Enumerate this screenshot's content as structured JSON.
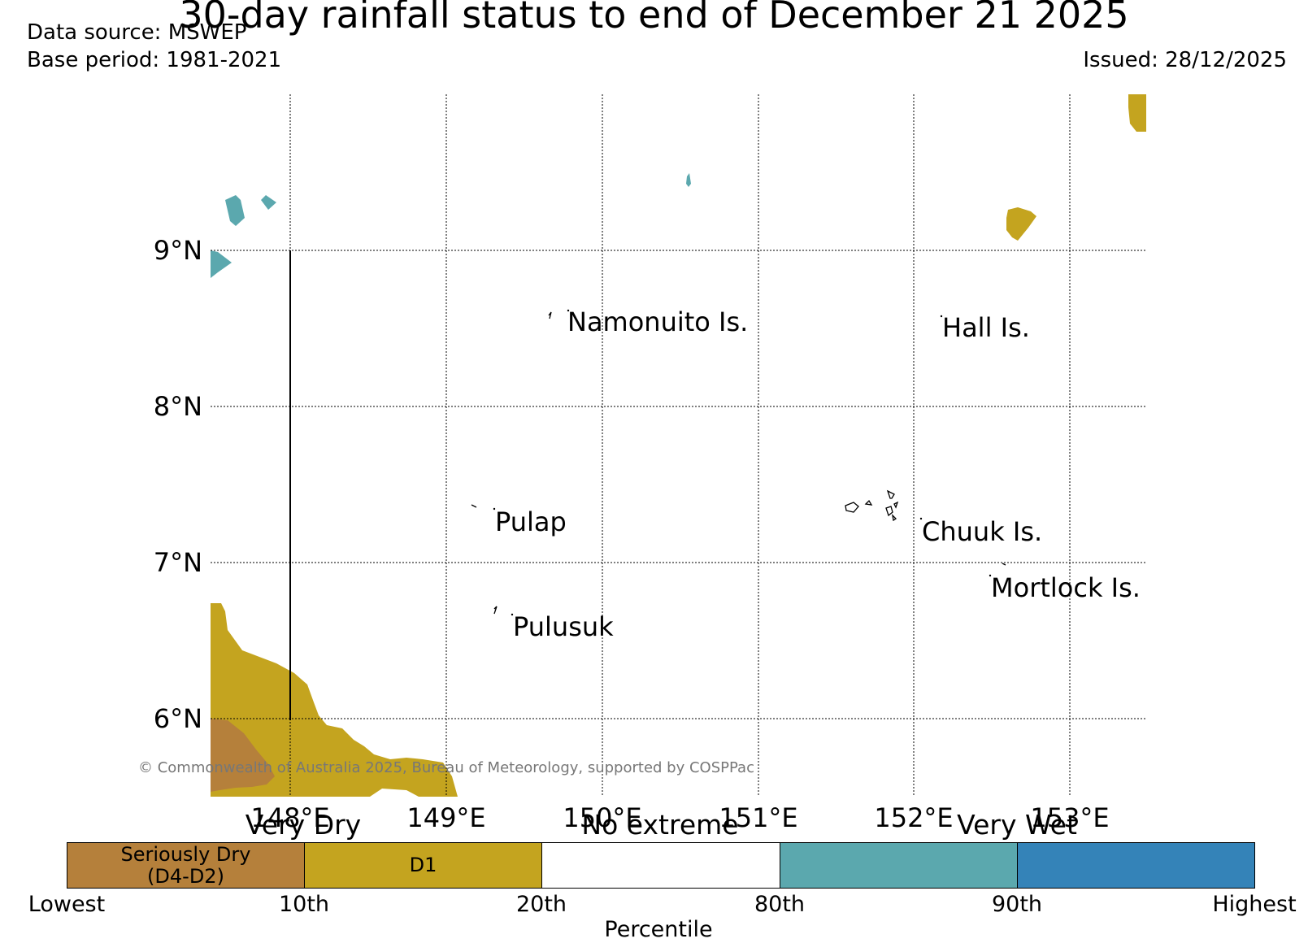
{
  "title": "30-day rainfall status to end of December 21 2025",
  "data_source": "Data source: MSWEP",
  "base_period": "Base period: 1981-2021",
  "issued": "Issued: 28/12/2025",
  "copyright": "© Commonwealth of Australia 2025, Bureau of Meteorology, supported by COSPPac",
  "lat_labels": [
    "9°N",
    "8°N",
    "7°N",
    "6°N"
  ],
  "lon_labels": [
    "148°E",
    "149°E",
    "150°E",
    "151°E",
    "152°E",
    "153°E"
  ],
  "places": [
    "Namonuito Is.",
    "Hall Is.",
    "Pulap",
    "Chuuk Is.",
    "Mortlock Is.",
    "Pulusuk"
  ],
  "legend": {
    "categories": [
      "Very Dry",
      "No extreme",
      "Very Wet"
    ],
    "boxes": [
      "Seriously Dry\n(D4-D2)",
      "D1",
      "",
      "",
      ""
    ],
    "ticks": [
      "Lowest",
      "10th",
      "20th",
      "80th",
      "90th",
      "Highest"
    ],
    "xlabel": "Percentile"
  },
  "colors": {
    "seriously_dry": "#b5803b",
    "d1": "#c4a41f",
    "no_extreme": "#ffffff",
    "wet_80_90": "#5ba8ae",
    "very_wet": "#3483b8"
  }
}
